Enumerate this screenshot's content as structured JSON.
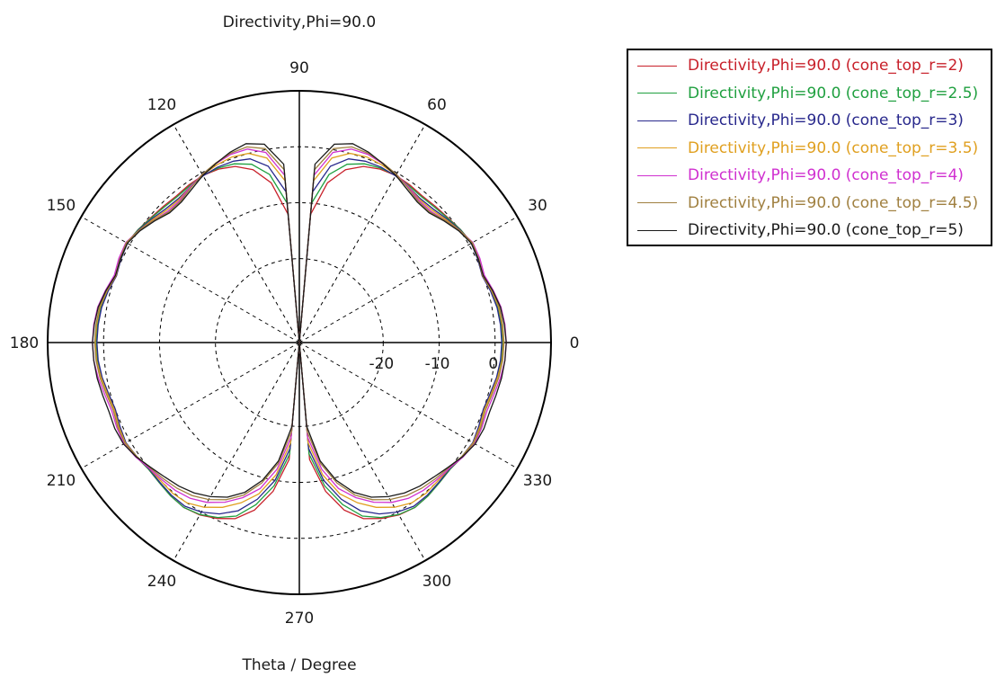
{
  "chart_data": {
    "type": "polar-line",
    "title": "Directivity,Phi=90.0",
    "xlabel": "Theta / Degree",
    "angle_ticks": [
      "0",
      "30",
      "60",
      "90",
      "120",
      "150",
      "180",
      "210",
      "240",
      "270",
      "300",
      "330"
    ],
    "radial_ticks": [
      "-20",
      "-10",
      "0"
    ],
    "radial_range": [
      -35,
      10
    ],
    "grid": true,
    "legend_position": "right",
    "series_angles_deg": [
      90,
      85,
      80,
      75,
      70,
      65,
      60,
      55,
      50,
      45,
      40,
      35,
      30,
      25,
      20,
      15,
      10,
      5,
      0,
      -5,
      -10,
      -15,
      -20,
      -25,
      -30,
      -35,
      -40,
      -45,
      -50,
      -55,
      -60,
      -65,
      -70,
      -75,
      -80,
      -85,
      -90
    ],
    "series": [
      {
        "name": "Directivity,Phi=90.0 (cone_top_r=2)",
        "color": "#c8202a",
        "values": [
          -35,
          -12,
          -6,
          -3,
          -1.5,
          -0.8,
          -0.5,
          -0.6,
          -0.8,
          -0.6,
          -0.3,
          0.2,
          0.6,
          0.3,
          -0.2,
          0.5,
          1.0,
          1.2,
          1.3,
          1.2,
          0.9,
          0.4,
          0.1,
          0.5,
          0.9,
          0.6,
          0.2,
          0.4,
          0.8,
          1.0,
          0.6,
          -0.3,
          -1.5,
          -4,
          -8,
          -14,
          -35
        ]
      },
      {
        "name": "Directivity,Phi=90.0 (cone_top_r=2.5)",
        "color": "#20a040",
        "values": [
          -35,
          -10,
          -4.5,
          -2,
          -1,
          -0.6,
          -0.5,
          -0.8,
          -1.0,
          -0.8,
          -0.4,
          0.2,
          0.6,
          0.3,
          -0.1,
          0.5,
          1.0,
          1.2,
          1.3,
          1.2,
          0.9,
          0.4,
          0.1,
          0.5,
          0.9,
          0.6,
          0.2,
          0.4,
          0.8,
          1.0,
          0.5,
          -0.5,
          -2,
          -5,
          -9,
          -15,
          -35
        ]
      },
      {
        "name": "Directivity,Phi=90.0 (cone_top_r=3)",
        "color": "#28288c",
        "values": [
          -35,
          -8,
          -3,
          -1,
          -0.5,
          -0.4,
          -0.6,
          -1.0,
          -1.4,
          -1.2,
          -0.6,
          0.1,
          0.5,
          0.2,
          -0.2,
          0.4,
          0.9,
          1.1,
          1.2,
          1.1,
          0.8,
          0.3,
          0.0,
          0.4,
          0.8,
          0.5,
          0.1,
          0.3,
          0.6,
          0.7,
          0.0,
          -1.2,
          -3,
          -6,
          -10,
          -16,
          -35
        ]
      },
      {
        "name": "Directivity,Phi=90.0 (cone_top_r=3.5)",
        "color": "#e0a020",
        "values": [
          -35,
          -6,
          -1.5,
          0,
          0.3,
          0.0,
          -0.4,
          -1.0,
          -1.6,
          -1.5,
          -0.8,
          0.0,
          0.6,
          0.3,
          -0.1,
          0.6,
          1.2,
          1.4,
          1.5,
          1.4,
          1.0,
          0.5,
          0.2,
          0.6,
          0.9,
          0.5,
          0.0,
          0.0,
          0.2,
          0.0,
          -1.0,
          -2.5,
          -4.5,
          -7,
          -11,
          -17,
          -35
        ]
      },
      {
        "name": "Directivity,Phi=90.0 (cone_top_r=4)",
        "color": "#d030d0",
        "values": [
          -35,
          -5,
          -0.5,
          0.8,
          0.8,
          0.3,
          -0.3,
          -1.0,
          -1.8,
          -1.8,
          -1.0,
          0.0,
          0.8,
          0.6,
          0.2,
          0.9,
          1.6,
          1.9,
          2.0,
          1.9,
          1.5,
          1.0,
          0.7,
          1.0,
          1.2,
          0.7,
          0.0,
          -0.3,
          -0.5,
          -1.0,
          -2.0,
          -3.5,
          -5.5,
          -8,
          -12,
          -18,
          -35
        ]
      },
      {
        "name": "Directivity,Phi=90.0 (cone_top_r=4.5)",
        "color": "#a08040",
        "values": [
          -35,
          -4,
          0.2,
          1.2,
          1.0,
          0.4,
          -0.3,
          -1.2,
          -2.0,
          -2.0,
          -1.0,
          0.0,
          0.7,
          0.4,
          0.0,
          0.7,
          1.3,
          1.5,
          1.6,
          1.5,
          1.2,
          0.7,
          0.4,
          0.8,
          1.0,
          0.5,
          -0.2,
          -0.6,
          -1.0,
          -1.6,
          -2.6,
          -4.0,
          -6.0,
          -9,
          -13,
          -19,
          -35
        ]
      },
      {
        "name": "Directivity,Phi=90.0 (cone_top_r=5)",
        "color": "#1a1a1a",
        "values": [
          -35,
          -3,
          1.0,
          1.8,
          1.2,
          0.3,
          -0.5,
          -1.5,
          -2.2,
          -2.2,
          -1.2,
          -0.2,
          0.5,
          0.3,
          0.0,
          0.8,
          1.5,
          1.8,
          2.0,
          1.9,
          1.7,
          1.4,
          1.2,
          1.4,
          1.3,
          0.6,
          -0.3,
          -1.0,
          -1.5,
          -2.2,
          -3.2,
          -4.5,
          -6.5,
          -9.5,
          -13.5,
          -20,
          -35
        ]
      }
    ]
  }
}
